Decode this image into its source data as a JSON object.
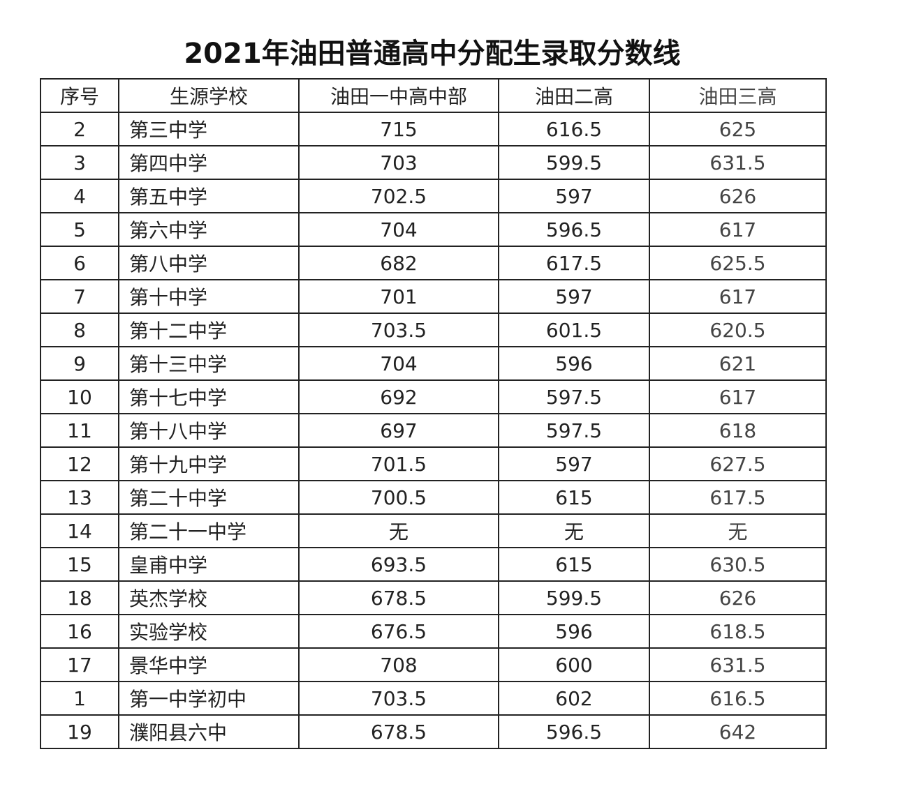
{
  "title": "2021年油田普通高中分配生录取分数线",
  "table": {
    "header": [
      "序号",
      "生源学校",
      "油田一中高中部",
      "油田二高",
      "油田三高"
    ],
    "rows": [
      [
        "2",
        "第三中学",
        "715",
        "616.5",
        "625"
      ],
      [
        "3",
        "第四中学",
        "703",
        "599.5",
        "631.5"
      ],
      [
        "4",
        "第五中学",
        "702.5",
        "597",
        "626"
      ],
      [
        "5",
        "第六中学",
        "704",
        "596.5",
        "617"
      ],
      [
        "6",
        "第八中学",
        "682",
        "617.5",
        "625.5"
      ],
      [
        "7",
        "第十中学",
        "701",
        "597",
        "617"
      ],
      [
        "8",
        "第十二中学",
        "703.5",
        "601.5",
        "620.5"
      ],
      [
        "9",
        "第十三中学",
        "704",
        "596",
        "621"
      ],
      [
        "10",
        "第十七中学",
        "692",
        "597.5",
        "617"
      ],
      [
        "11",
        "第十八中学",
        "697",
        "597.5",
        "618"
      ],
      [
        "12",
        "第十九中学",
        "701.5",
        "597",
        "627.5"
      ],
      [
        "13",
        "第二十中学",
        "700.5",
        "615",
        "617.5"
      ],
      [
        "14",
        "第二十一中学",
        "无",
        "无",
        "无"
      ],
      [
        "15",
        "皇甫中学",
        "693.5",
        "615",
        "630.5"
      ],
      [
        "18",
        "英杰学校",
        "678.5",
        "599.5",
        "626"
      ],
      [
        "16",
        "实验学校",
        "676.5",
        "596",
        "618.5"
      ],
      [
        "17",
        "景华中学",
        "708",
        "600",
        "631.5"
      ],
      [
        "1",
        "第一中学初中",
        "703.5",
        "602",
        "616.5"
      ],
      [
        "19",
        "濮阳县六中",
        "678.5",
        "596.5",
        "642"
      ]
    ]
  }
}
